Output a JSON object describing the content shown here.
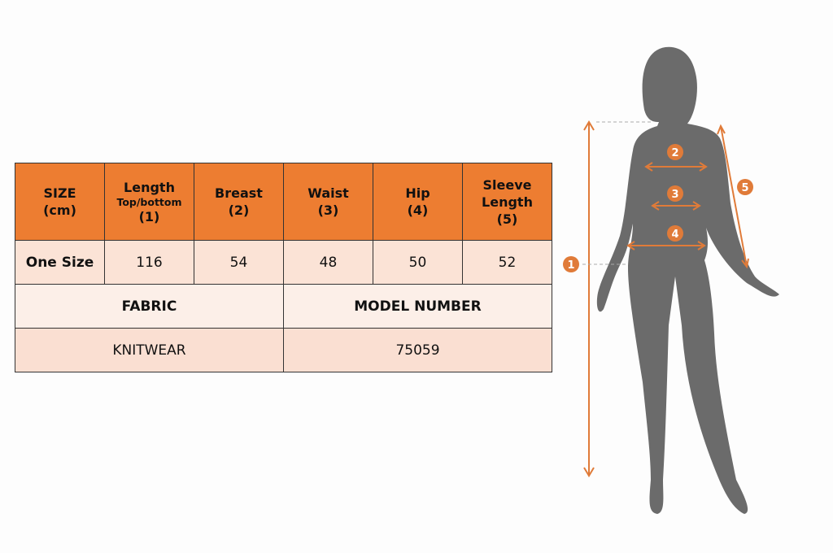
{
  "size_table": {
    "headers": [
      {
        "line1": "SIZE",
        "line2": "(cm)"
      },
      {
        "line1": "Length",
        "sub": "Top/bottom",
        "line2": "(1)"
      },
      {
        "line1": "Breast",
        "line2": "(2)"
      },
      {
        "line1": "Waist",
        "line2": "(3)"
      },
      {
        "line1": "Hip",
        "line2": "(4)"
      },
      {
        "line1": "Sleeve Length",
        "line2": "(5)"
      }
    ],
    "row": [
      "One Size",
      "116",
      "54",
      "48",
      "50",
      "52"
    ],
    "fabric_label": "FABRIC",
    "model_label": "MODEL NUMBER",
    "fabric_value": "KNITWEAR",
    "model_value": "75059"
  },
  "figure": {
    "markers": [
      "1",
      "2",
      "3",
      "4",
      "5"
    ],
    "accent": "#E07B39",
    "silhouette": "#6b6b6b"
  },
  "colors": {
    "header": "#ED7D31",
    "row": "#FBE3D6"
  }
}
